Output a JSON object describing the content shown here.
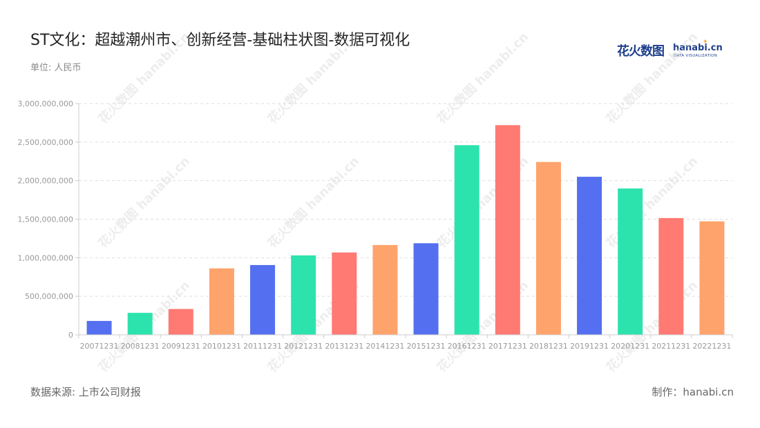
{
  "header": {
    "title": "ST文化：超越潮州市、创新经营-基础柱状图-数据可视化",
    "unit": "单位: 人民币"
  },
  "logo": {
    "cn": "花火数图",
    "en": "hanabi.cn",
    "sub": "DATA VISUALIZATION"
  },
  "footer": {
    "source": "数据来源: 上市公司财报",
    "maker": "制作：hanabi.cn"
  },
  "watermark": "花火数图 hanabi.cn",
  "chart_data": {
    "type": "bar",
    "categories": [
      "20071231",
      "20081231",
      "20091231",
      "20101231",
      "20111231",
      "20121231",
      "20131231",
      "20141231",
      "20151231",
      "20161231",
      "20171231",
      "20181231",
      "20191231",
      "20201231",
      "20211231",
      "20221231"
    ],
    "values": [
      180000000,
      285000000,
      335000000,
      862000000,
      905000000,
      1030000000,
      1068000000,
      1165000000,
      1188000000,
      2460000000,
      2720000000,
      2242000000,
      2050000000,
      1898000000,
      1515000000,
      1472000000
    ],
    "colors": [
      "#5470f0",
      "#2de3ad",
      "#ff7a72",
      "#ffa36c",
      "#5470f0",
      "#2de3ad",
      "#ff7a72",
      "#ffa36c",
      "#5470f0",
      "#2de3ad",
      "#ff7a72",
      "#ffa36c",
      "#5470f0",
      "#2de3ad",
      "#ff7a72",
      "#ffa36c"
    ],
    "ylim": [
      0,
      3000000000
    ],
    "yticks": [
      0,
      500000000,
      1000000000,
      1500000000,
      2000000000,
      2500000000,
      3000000000
    ],
    "ytick_labels": [
      "0",
      "500,000,000",
      "1,000,000,000",
      "1,500,000,000",
      "2,000,000,000",
      "2,500,000,000",
      "3,000,000,000"
    ],
    "grid": true,
    "legend": "none"
  }
}
